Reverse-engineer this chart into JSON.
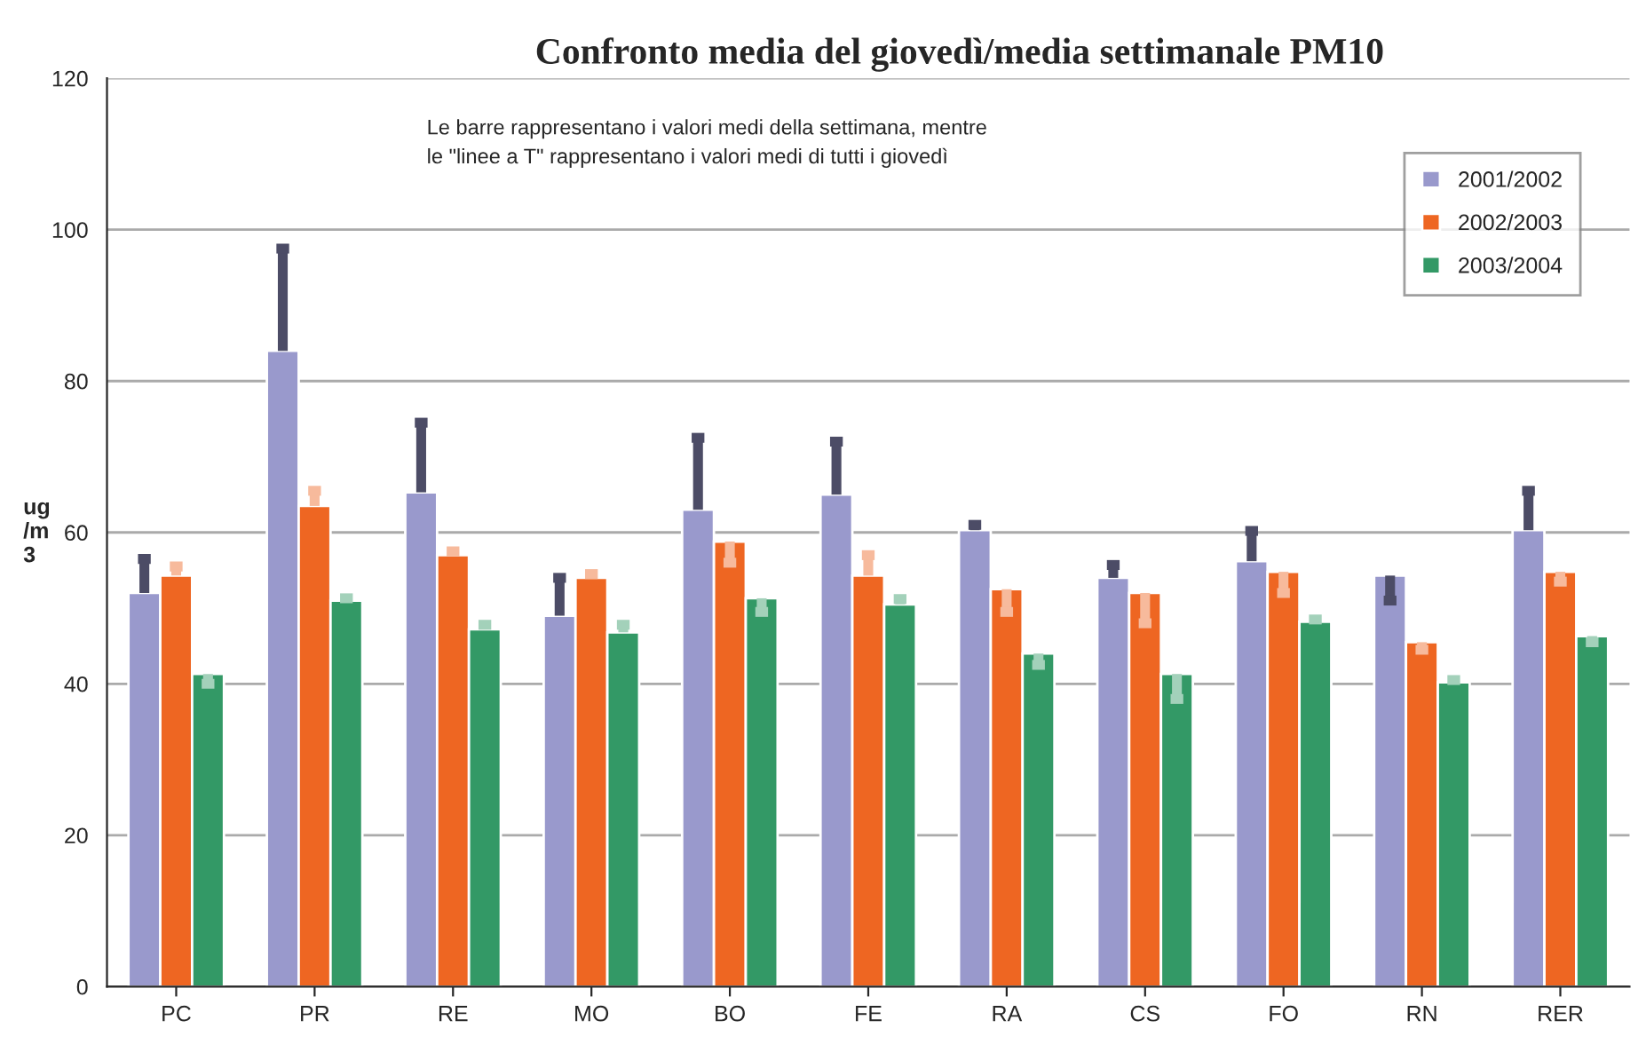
{
  "chart_data": {
    "type": "bar",
    "title": "Confronto media del giovedì/media settimanale PM10",
    "ylabel": "ug\n/m\n3",
    "categories": [
      "PC",
      "PR",
      "RE",
      "MO",
      "BO",
      "FE",
      "RA",
      "CS",
      "FO",
      "RN",
      "RER"
    ],
    "series": [
      {
        "name": "2001/2002",
        "color": "#9999cc",
        "values": [
          52,
          84,
          65.3,
          49,
          63,
          65,
          60.3,
          54,
          56.2,
          54.3,
          60.3
        ],
        "errors": [
          [
            52,
            56.5
          ],
          [
            84,
            97.5
          ],
          [
            65.3,
            74.5
          ],
          [
            49,
            54
          ],
          [
            63,
            72.5
          ],
          [
            65,
            72
          ],
          [
            60.3,
            61
          ],
          [
            54,
            55.7
          ],
          [
            56.2,
            60.2
          ],
          [
            51,
            54.3
          ],
          [
            60.3,
            65.5
          ]
        ]
      },
      {
        "name": "2002/2003",
        "color": "#ee6622",
        "values": [
          54.3,
          63.5,
          57,
          54,
          58.8,
          54.3,
          52.5,
          52,
          54.8,
          45.5,
          54.8
        ],
        "errors": [
          [
            54.3,
            55.5
          ],
          [
            63.5,
            65.5
          ],
          [
            57,
            57.5
          ],
          [
            54,
            54.5
          ],
          [
            56,
            58.8
          ],
          [
            54.3,
            57
          ],
          [
            49.5,
            52.5
          ],
          [
            48,
            52
          ],
          [
            52,
            54.8
          ],
          [
            44.5,
            45.5
          ],
          [
            53.5,
            54.8
          ]
        ]
      },
      {
        "name": "2003/2004",
        "color": "#339966",
        "values": [
          41.3,
          51,
          47.2,
          46.8,
          51.3,
          50.5,
          44,
          41.3,
          48.2,
          40.2,
          46.3
        ],
        "errors": [
          [
            40,
            41.3
          ],
          [
            51,
            51.3
          ],
          [
            47.2,
            47.8
          ],
          [
            46.8,
            47.8
          ],
          [
            49.5,
            51.3
          ],
          [
            50.5,
            51.2
          ],
          [
            42.5,
            44
          ],
          [
            38,
            41.3
          ],
          [
            48.2,
            48.5
          ],
          [
            40.2,
            40.5
          ],
          [
            45.5,
            46.3
          ]
        ]
      }
    ],
    "ylim": [
      0,
      120
    ],
    "yticks": [
      0,
      20,
      40,
      60,
      80,
      100,
      120
    ],
    "grid": "y",
    "legend": "top right",
    "annotations": [
      "Le barre rappresentano i valori medi della settimana, mentre\nle \"linee a T\" rappresentano i valori medi di tutti i giovedì"
    ]
  }
}
